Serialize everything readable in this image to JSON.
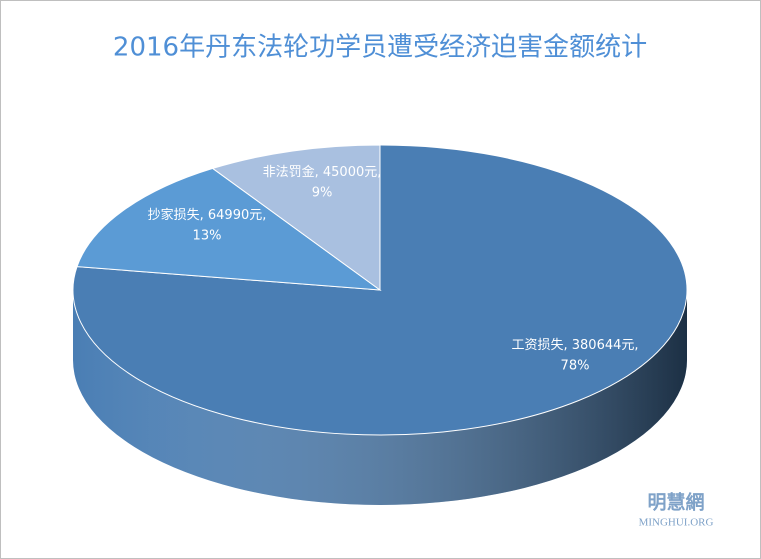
{
  "chart_data": {
    "type": "pie3d",
    "title": "2016年丹东法轮功学员遭受经济迫害金额统计",
    "categories": [
      "工资损失",
      "抄家损失",
      "非法罚金"
    ],
    "values": [
      380644,
      64990,
      45000
    ],
    "value_labels": [
      "380644元",
      "64990元",
      "45000元"
    ],
    "percents": [
      78,
      13,
      9
    ],
    "percent_labels": [
      "78%",
      "13%",
      "9%"
    ],
    "label_separator": ", ",
    "colors": [
      "#4a7eb4",
      "#5b9bd5",
      "#a9c0e0"
    ],
    "watermark": [
      "明慧網",
      "MINGHUI.ORG"
    ]
  }
}
